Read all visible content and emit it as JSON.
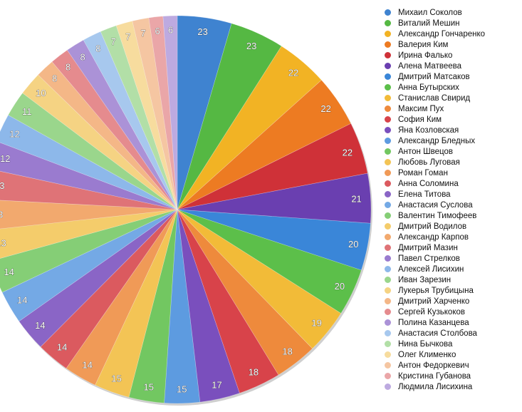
{
  "chart_data": {
    "type": "pie",
    "title": "",
    "legend_position": "right",
    "slices": [
      {
        "label": "Михаил Соколов",
        "value": 23,
        "color": "#3f83d0"
      },
      {
        "label": "Виталий Мешин",
        "value": 23,
        "color": "#55b843"
      },
      {
        "label": "Александр Гончаренко",
        "value": 22,
        "color": "#f2b324"
      },
      {
        "label": "Валерия Ким",
        "value": 22,
        "color": "#ed7b22"
      },
      {
        "label": "Ирина Фалько",
        "value": 22,
        "color": "#cf3138"
      },
      {
        "label": "Алена Матвеева",
        "value": 21,
        "color": "#6a3fb0"
      },
      {
        "label": "Дмитрий Матсаков",
        "value": 20,
        "color": "#3a86d8"
      },
      {
        "label": "Анна Бутырских",
        "value": 20,
        "color": "#5cbf4a"
      },
      {
        "label": "Станислав Свирид",
        "value": 19,
        "color": "#f2bb38"
      },
      {
        "label": "Максим Пух",
        "value": 18,
        "color": "#ee8a3c"
      },
      {
        "label": "София Ким",
        "value": 18,
        "color": "#d8434a"
      },
      {
        "label": "Яна Козловская",
        "value": 17,
        "color": "#7a4fbd"
      },
      {
        "label": "Александр Бледных",
        "value": 15,
        "color": "#5d9be0"
      },
      {
        "label": "Антон Швецов",
        "value": 15,
        "color": "#72c761"
      },
      {
        "label": "Любовь Луговая",
        "value": 15,
        "color": "#f3c455"
      },
      {
        "label": "Роман Гоман",
        "value": 14,
        "color": "#f09a57"
      },
      {
        "label": "Анна Соломина",
        "value": 14,
        "color": "#db5a5f"
      },
      {
        "label": "Елена Титова",
        "value": 14,
        "color": "#8a65c6"
      },
      {
        "label": "Анастасия Суслова",
        "value": 14,
        "color": "#74a9e5"
      },
      {
        "label": "Валентин Тимофеев",
        "value": 14,
        "color": "#85ce76"
      },
      {
        "label": "Дмитрий Водилов",
        "value": 13,
        "color": "#f4cc6b"
      },
      {
        "label": "Александр Карпов",
        "value": 13,
        "color": "#f2a96e"
      },
      {
        "label": "Дмитрий Мазин",
        "value": 13,
        "color": "#df7377"
      },
      {
        "label": "Павел Стрелков",
        "value": 12,
        "color": "#9a7bcf"
      },
      {
        "label": "Алексей Лисихин",
        "value": 12,
        "color": "#8db8ea"
      },
      {
        "label": "Иван Зарезин",
        "value": 11,
        "color": "#9ad68c"
      },
      {
        "label": "Лукерья Трубицына",
        "value": 10,
        "color": "#f5d383"
      },
      {
        "label": "Дмитрий Харченко",
        "value": 8,
        "color": "#f4b787"
      },
      {
        "label": "Сергей Кузькоков",
        "value": 8,
        "color": "#e58b8e"
      },
      {
        "label": "Полина Казанцева",
        "value": 8,
        "color": "#ab92d7"
      },
      {
        "label": "Анастасия Столбова",
        "value": 8,
        "color": "#a7c8ee"
      },
      {
        "label": "Нина Бычкова",
        "value": 7,
        "color": "#b2dfa7"
      },
      {
        "label": "Олег Клименко",
        "value": 7,
        "color": "#f7dc9e"
      },
      {
        "label": "Антон Федоркевич",
        "value": 7,
        "color": "#f5c6a2"
      },
      {
        "label": "Кристина Губанова",
        "value": 6,
        "color": "#eaa6a8"
      },
      {
        "label": "Людмила Лисихина",
        "value": 6,
        "color": "#bdaae0"
      }
    ]
  }
}
